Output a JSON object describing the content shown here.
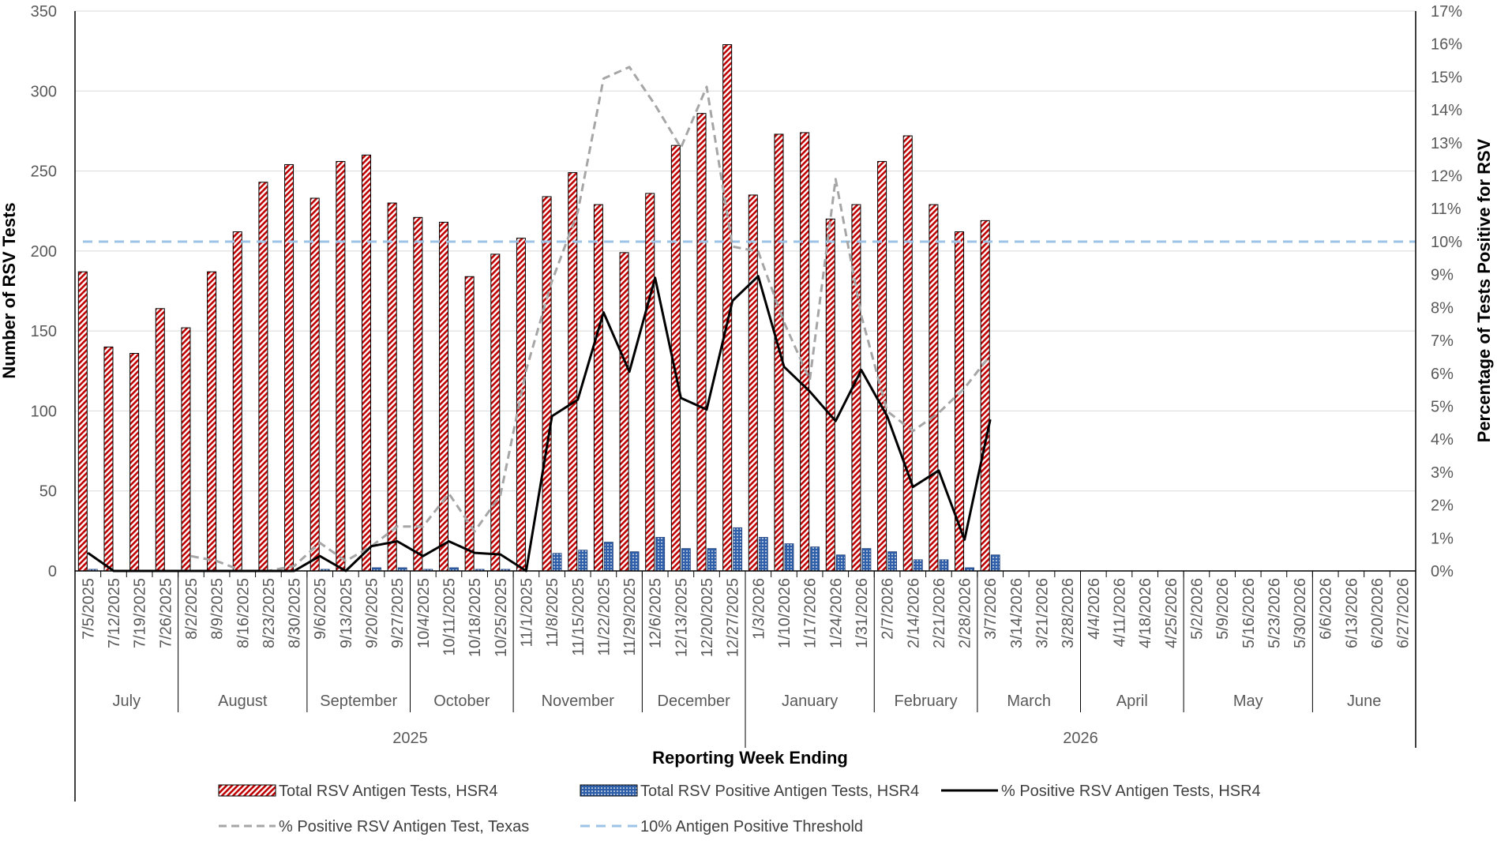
{
  "chart_data": {
    "type": "bar",
    "xlabel": "Reporting Week Ending",
    "ylabel_left": "Number of RSV Tests",
    "ylabel_right": "Percentage of Tests Positive for RSV",
    "ylim_left": [
      0,
      350
    ],
    "ylim_right": [
      0,
      17
    ],
    "yticks_left": [
      "0",
      "50",
      "100",
      "150",
      "200",
      "250",
      "300",
      "350"
    ],
    "yticks_right": [
      "0%",
      "1%",
      "2%",
      "3%",
      "4%",
      "5%",
      "6%",
      "7%",
      "8%",
      "9%",
      "10%",
      "11%",
      "12%",
      "13%",
      "14%",
      "15%",
      "16%",
      "17%"
    ],
    "grid": true,
    "legend_position": "bottom",
    "categories": [
      "7/5/2025",
      "7/12/2025",
      "7/19/2025",
      "7/26/2025",
      "8/2/2025",
      "8/9/2025",
      "8/16/2025",
      "8/23/2025",
      "8/30/2025",
      "9/6/2025",
      "9/13/2025",
      "9/20/2025",
      "9/27/2025",
      "10/4/2025",
      "10/11/2025",
      "10/18/2025",
      "10/25/2025",
      "11/1/2025",
      "11/8/2025",
      "11/15/2025",
      "11/22/2025",
      "11/29/2025",
      "12/6/2025",
      "12/13/2025",
      "12/20/2025",
      "12/27/2025",
      "1/3/2026",
      "1/10/2026",
      "1/17/2026",
      "1/24/2026",
      "1/31/2026",
      "2/7/2026",
      "2/14/2026",
      "2/21/2026",
      "2/28/2026",
      "3/7/2026",
      "3/14/2026",
      "3/21/2026",
      "3/28/2026",
      "4/4/2026",
      "4/11/2026",
      "4/18/2026",
      "4/25/2026",
      "5/2/2026",
      "5/9/2026",
      "5/16/2026",
      "5/23/2026",
      "5/30/2026",
      "6/6/2026",
      "6/13/2026",
      "6/20/2026",
      "6/27/2026"
    ],
    "months": [
      {
        "label": "July",
        "start": 0,
        "end": 4
      },
      {
        "label": "August",
        "start": 4,
        "end": 9
      },
      {
        "label": "September",
        "start": 9,
        "end": 13
      },
      {
        "label": "October",
        "start": 13,
        "end": 17
      },
      {
        "label": "November",
        "start": 17,
        "end": 22
      },
      {
        "label": "December",
        "start": 22,
        "end": 26
      },
      {
        "label": "January",
        "start": 26,
        "end": 31
      },
      {
        "label": "February",
        "start": 31,
        "end": 35
      },
      {
        "label": "March",
        "start": 35,
        "end": 39
      },
      {
        "label": "April",
        "start": 39,
        "end": 43
      },
      {
        "label": "May",
        "start": 43,
        "end": 48
      },
      {
        "label": "June",
        "start": 48,
        "end": 52
      }
    ],
    "years": [
      {
        "label": "2025",
        "start": 0,
        "end": 26
      },
      {
        "label": "2026",
        "start": 26,
        "end": 52
      }
    ],
    "series": [
      {
        "name": "Total RSV Antigen Tests, HSR4",
        "type": "bar",
        "axis": "left",
        "color": "#c00000",
        "values": [
          187,
          140,
          136,
          164,
          152,
          187,
          212,
          243,
          254,
          233,
          256,
          260,
          230,
          221,
          218,
          184,
          198,
          208,
          234,
          249,
          229,
          199,
          236,
          266,
          286,
          329,
          235,
          273,
          274,
          220,
          229,
          256,
          272,
          229,
          212,
          219,
          null,
          null,
          null,
          null,
          null,
          null,
          null,
          null,
          null,
          null,
          null,
          null,
          null,
          null,
          null,
          null
        ]
      },
      {
        "name": "Total RSV Positive Antigen Tests, HSR4",
        "type": "bar",
        "axis": "left",
        "color": "#2f5fa8",
        "values": [
          1,
          0,
          0,
          0,
          0,
          0,
          0,
          0,
          0,
          1,
          0,
          2,
          2,
          1,
          2,
          1,
          1,
          0,
          11,
          13,
          18,
          12,
          21,
          14,
          14,
          27,
          21,
          17,
          15,
          10,
          14,
          12,
          7,
          7,
          2,
          10,
          null,
          null,
          null,
          null,
          null,
          null,
          null,
          null,
          null,
          null,
          null,
          null,
          null,
          null,
          null,
          null
        ]
      },
      {
        "name": "% Positive RSV Antigen Tests, HSR4",
        "type": "line",
        "axis": "right",
        "color": "#000000",
        "values": [
          0.55,
          0.0,
          0.0,
          0.0,
          0.0,
          0.0,
          0.0,
          0.0,
          0.0,
          0.45,
          0.0,
          0.75,
          0.9,
          0.45,
          0.9,
          0.55,
          0.5,
          0.0,
          4.7,
          5.2,
          7.85,
          6.05,
          8.9,
          5.25,
          4.9,
          8.2,
          8.95,
          6.2,
          5.45,
          4.55,
          6.1,
          4.7,
          2.55,
          3.05,
          0.95,
          4.6,
          null,
          null,
          null,
          null,
          null,
          null,
          null,
          null,
          null,
          null,
          null,
          null,
          null,
          null,
          null,
          null
        ]
      },
      {
        "name": "% Positive RSV Antigen Test, Texas",
        "type": "line",
        "axis": "right",
        "color": "#a6a6a6",
        "dashed": true,
        "values": [
          null,
          null,
          null,
          null,
          0.45,
          0.3,
          0.0,
          0.0,
          0.15,
          0.85,
          0.3,
          0.75,
          1.35,
          1.35,
          2.35,
          1.2,
          2.3,
          6.1,
          8.8,
          10.9,
          14.95,
          15.3,
          14.15,
          12.85,
          14.7,
          9.85,
          9.7,
          7.55,
          5.8,
          11.9,
          7.75,
          4.85,
          4.25,
          4.8,
          5.55,
          6.55,
          null,
          null,
          null,
          null,
          null,
          null,
          null,
          null,
          null,
          null,
          null,
          null,
          null,
          null,
          null,
          null
        ]
      },
      {
        "name": "10% Antigen Positive Threshold",
        "type": "line",
        "axis": "right",
        "color": "#9dc3e6",
        "dashed": true,
        "constant": 10
      }
    ]
  }
}
